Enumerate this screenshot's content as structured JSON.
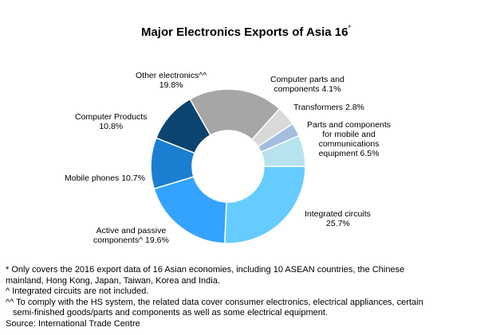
{
  "chart_data": {
    "type": "pie",
    "title": "Major Electronics Exports of Asia 16",
    "title_sup": "*",
    "categories": [
      "Integrated circuits",
      "Active and passive components^",
      "Mobile phones",
      "Computer Products",
      "Other electronics^^",
      "Computer parts and components",
      "Transformers",
      "Parts and components for mobile and communications equipment"
    ],
    "values": [
      25.7,
      19.6,
      10.7,
      10.8,
      19.8,
      4.1,
      2.8,
      6.5
    ],
    "colors": [
      "#66ccff",
      "#33a3ff",
      "#1a7fd0",
      "#0b4470",
      "#a6a6a6",
      "#d9d9d9",
      "#a3bde0",
      "#b7e3ee"
    ],
    "labels": [
      {
        "l1": "Integrated circuits",
        "l2": "25.7%"
      },
      {
        "l1": "Active and passive",
        "l2": "components^ 19.6%"
      },
      {
        "l1": "Mobile phones 10.7%"
      },
      {
        "l1": "Computer Products",
        "l2": "10.8%"
      },
      {
        "l1": "Other electronics^^",
        "l2": "19.8%"
      },
      {
        "l1": "Computer parts and",
        "l2": "components 4.1%"
      },
      {
        "l1": "Transformers 2.8%"
      },
      {
        "l1": "Parts and components",
        "l2": "for mobile and",
        "l3": "communications",
        "l4": "equipment  6.5%"
      }
    ],
    "donut": true,
    "start": "3 o'clock",
    "direction": "clockwise"
  },
  "notes": [
    "* Only covers the 2016 export data of 16 Asian economies, including 10 ASEAN countries, the Chinese",
    "mainland, Hong Kong, Japan, Taiwan, Korea and India.",
    "^ Integrated circuits are not included.",
    "^^ To comply with the HS system, the related data cover consumer electronics, electrical appliances, certain",
    "semi-finished goods/parts and components as well as some electrical equipment.",
    "Source: International Trade Centre"
  ]
}
